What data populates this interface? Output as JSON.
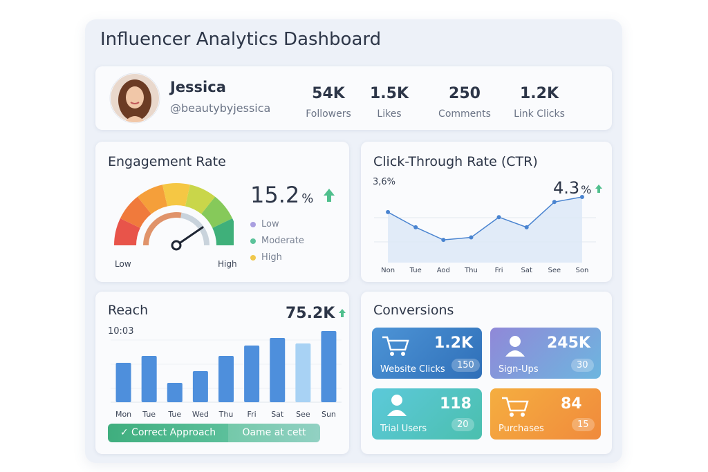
{
  "header": {
    "title": "Influencer Analytics Dashboard"
  },
  "profile": {
    "name": "Jessica",
    "handle": "@beautybyjessica",
    "stats": [
      {
        "value": "54K",
        "label": "Followers"
      },
      {
        "value": "1.5K",
        "label": "Likes"
      },
      {
        "value": "250",
        "label": "Comments"
      },
      {
        "value": "1.2K",
        "label": "Link Clicks"
      }
    ]
  },
  "engagement": {
    "title": "Engagement Rate",
    "value": "15.2",
    "unit": "%",
    "gauge_low": "Low",
    "gauge_high": "High",
    "legend": [
      {
        "label": "Low",
        "color": "#a99fe0"
      },
      {
        "label": "Moderate",
        "color": "#5cc39b"
      },
      {
        "label": "High",
        "color": "#f0c84c"
      }
    ]
  },
  "ctr": {
    "type": "line",
    "title": "Click-Through Rate (CTR)",
    "top_label": "3,6%",
    "value": "4.3",
    "unit": "%",
    "categories": [
      "Non",
      "Tue",
      "Aod",
      "Thu",
      "Fri",
      "Sat",
      "See",
      "Son"
    ],
    "values": [
      4.0,
      3.7,
      3.45,
      3.5,
      3.9,
      3.7,
      4.2,
      4.3
    ],
    "ylim": [
      3.0,
      4.3
    ],
    "color": "#4a84d0"
  },
  "reach": {
    "type": "bar",
    "title": "Reach",
    "value": "75.2K",
    "top_label": "10:03",
    "categories": [
      "Mon",
      "Tue",
      "Tue",
      "Wed",
      "Thu",
      "Fri",
      "Sat",
      "See",
      "Sun"
    ],
    "values": [
      57,
      67,
      28,
      45,
      67,
      82,
      93,
      85,
      103
    ],
    "colors": [
      "#4e8fdc",
      "#4e8fdc",
      "#4e8fdc",
      "#4e8fdc",
      "#4e8fdc",
      "#4e8fdc",
      "#4e8fdc",
      "#a8d2f4",
      "#4e8fdc"
    ],
    "ylim": [
      0,
      110
    ],
    "buttons": [
      "✓ Correct Approach",
      "Oame at cett"
    ]
  },
  "conversions": {
    "title": "Conversions",
    "items": [
      {
        "label": "Website Clicks",
        "value": "1.2K",
        "badge": "150"
      },
      {
        "label": "Sign-Ups",
        "value": "245K",
        "badge": "30"
      },
      {
        "label": "Trial Users",
        "value": "118",
        "badge": "20"
      },
      {
        "label": "Purchases",
        "value": "84",
        "badge": "15"
      }
    ]
  }
}
